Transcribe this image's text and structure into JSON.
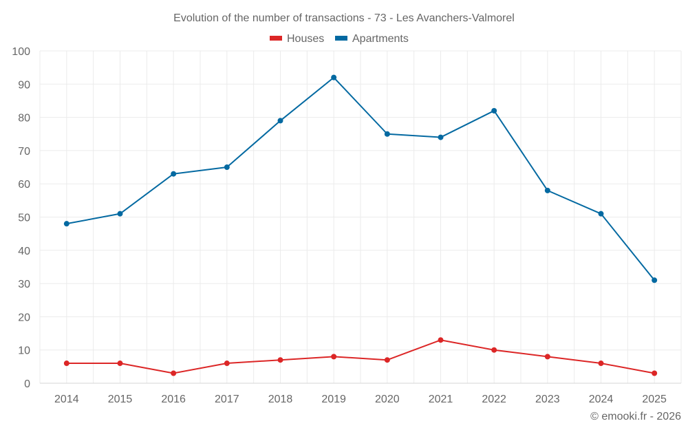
{
  "chart_data": {
    "type": "line",
    "title": "Evolution of the number of transactions - 73 - Les Avanchers-Valmorel",
    "xlabel": "",
    "ylabel": "",
    "categories": [
      "2014",
      "2015",
      "2016",
      "2017",
      "2018",
      "2019",
      "2020",
      "2021",
      "2022",
      "2023",
      "2024",
      "2025"
    ],
    "series": [
      {
        "name": "Houses",
        "color": "#dc2626",
        "values": [
          6,
          6,
          3,
          6,
          7,
          8,
          7,
          13,
          10,
          8,
          6,
          3
        ]
      },
      {
        "name": "Apartments",
        "color": "#0369a1",
        "values": [
          48,
          51,
          63,
          65,
          79,
          92,
          75,
          74,
          82,
          58,
          51,
          31
        ]
      }
    ],
    "ylim": [
      0,
      100
    ],
    "yticks": [
      0,
      10,
      20,
      30,
      40,
      50,
      60,
      70,
      80,
      90,
      100
    ],
    "grid": true,
    "legend_position": "top-center"
  },
  "credit": "© emooki.fr - 2026"
}
